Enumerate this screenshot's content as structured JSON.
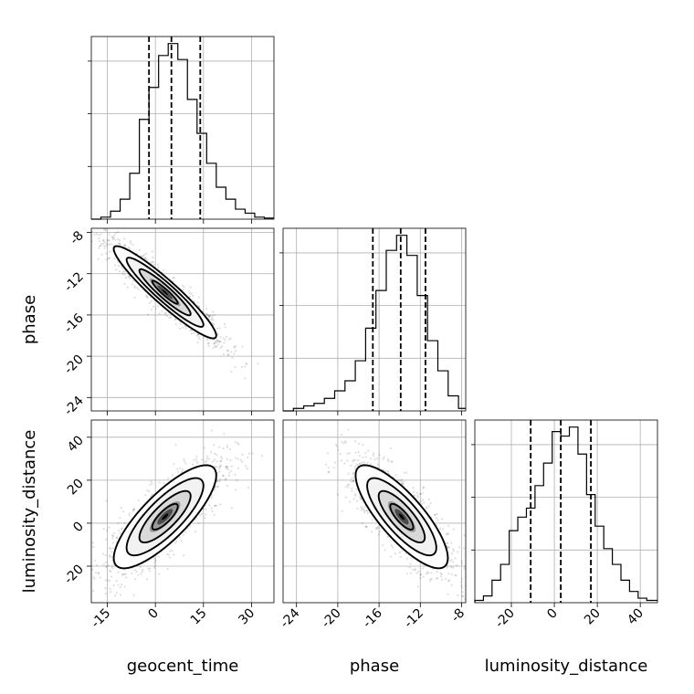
{
  "chart_data": {
    "type": "corner",
    "parameters": [
      "geocent_time",
      "phase",
      "luminosity_distance"
    ],
    "ranges": {
      "geocent_time": [
        -20,
        37
      ],
      "phase": [
        -25.3,
        -7.6
      ],
      "luminosity_distance": [
        -37,
        48
      ]
    },
    "ticks": {
      "geocent_time": [
        "-15",
        "0",
        "15",
        "30"
      ],
      "phase": [
        "-24",
        "-20",
        "-16",
        "-12",
        "-8"
      ],
      "luminosity_distance": [
        "-20",
        "0",
        "20",
        "40"
      ]
    },
    "grid": true,
    "histograms": [
      {
        "parameter": "geocent_time",
        "edges": [
          -20,
          -17,
          -14,
          -11,
          -8,
          -5,
          -2,
          1,
          4,
          7,
          10,
          13,
          16,
          19,
          22,
          25,
          28,
          31,
          34,
          37
        ],
        "counts": [
          0,
          1,
          4,
          10,
          23,
          50,
          66,
          82,
          88,
          80,
          60,
          43,
          28,
          16,
          10,
          5,
          3,
          1,
          0.5
        ],
        "quantiles": [
          -2,
          5,
          14
        ]
      },
      {
        "parameter": "phase",
        "edges": [
          -25.3,
          -24.3,
          -23.3,
          -22.3,
          -21.3,
          -20.3,
          -19.3,
          -18.3,
          -17.3,
          -16.3,
          -15.3,
          -14.3,
          -13.3,
          -12.3,
          -11.3,
          -10.3,
          -9.3,
          -8.3,
          -7.6
        ],
        "counts": [
          0,
          1,
          2,
          3,
          5,
          8,
          12,
          20,
          33,
          48,
          64,
          70,
          62,
          46,
          28,
          16,
          6,
          1
        ],
        "quantiles": [
          -16.6,
          -13.9,
          -11.5
        ]
      },
      {
        "parameter": "luminosity_distance",
        "edges": [
          -37,
          -33,
          -29,
          -25,
          -21,
          -17,
          -13,
          -9,
          -5,
          -1,
          3,
          7,
          11,
          15,
          19,
          23,
          27,
          31,
          35,
          39,
          43,
          48
        ],
        "counts": [
          1,
          3,
          10,
          17,
          32,
          38,
          42,
          52,
          62,
          76,
          74,
          78,
          66,
          48,
          34,
          24,
          17,
          10,
          5,
          2,
          1
        ],
        "quantiles": [
          -11,
          3,
          17
        ]
      }
    ],
    "joint_2d": [
      {
        "x": "geocent_time",
        "y": "phase",
        "center": [
          3,
          -13.8
        ],
        "cov": [
          [
            64,
            -16.8
          ],
          [
            -16.8,
            5.0
          ]
        ],
        "contour_levels": [
          0.5,
          1.0,
          1.5,
          2.0
        ]
      },
      {
        "x": "geocent_time",
        "y": "luminosity_distance",
        "center": [
          3,
          3
        ],
        "cov": [
          [
            64,
            77
          ],
          [
            77,
            144
          ]
        ],
        "contour_levels": [
          0.5,
          1.0,
          1.5,
          2.0
        ]
      },
      {
        "x": "phase",
        "y": "luminosity_distance",
        "center": [
          -13.8,
          3
        ],
        "cov": [
          [
            5.0,
            -21.5
          ],
          [
            -21.5,
            144
          ]
        ],
        "contour_levels": [
          0.5,
          1.0,
          1.5,
          2.0
        ]
      }
    ],
    "xlabels": [
      "geocent_time",
      "phase",
      "luminosity_distance"
    ],
    "ylabels": [
      "",
      "phase",
      "luminosity_distance"
    ]
  }
}
